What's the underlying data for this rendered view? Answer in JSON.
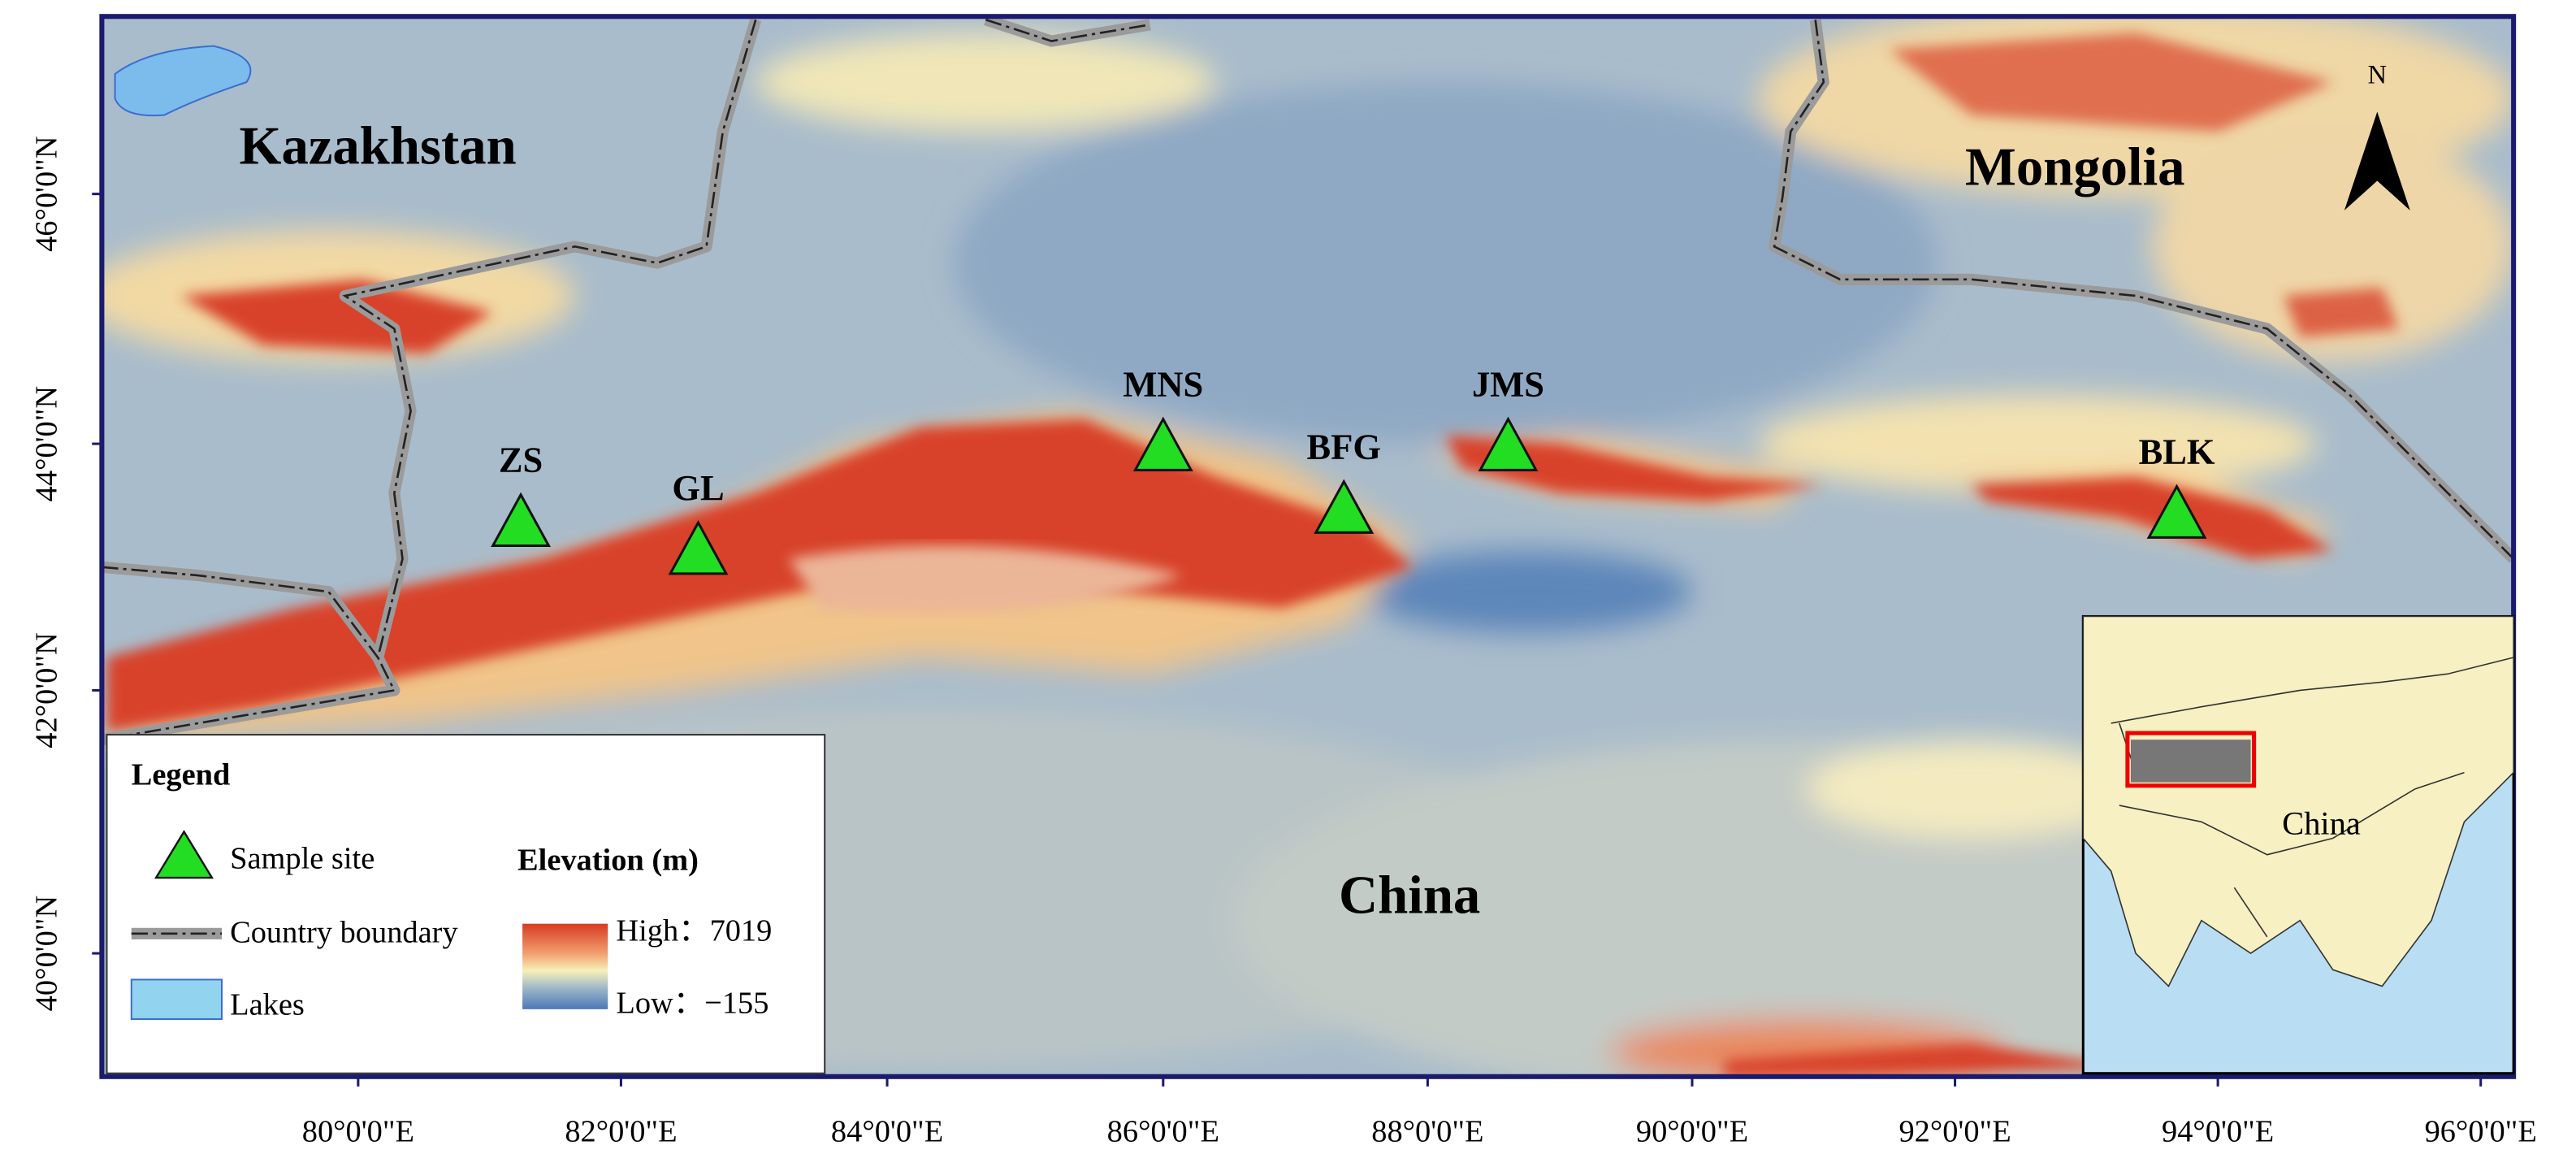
{
  "map": {
    "countries": [
      "Kazakhstan",
      "Mongolia",
      "China"
    ],
    "sites": [
      "ZS",
      "GL",
      "MNS",
      "BFG",
      "JMS",
      "BLK"
    ],
    "longitude_labels": [
      "80°0'0\"E",
      "82°0'0\"E",
      "84°0'0\"E",
      "86°0'0\"E",
      "88°0'0\"E",
      "90°0'0\"E",
      "92°0'0\"E",
      "94°0'0\"E",
      "96°0'0\"E"
    ],
    "latitude_labels": [
      "46°0'0\"N",
      "44°0'0\"N",
      "42°0'0\"N",
      "40°0'0\"N"
    ],
    "north": "N",
    "inset_label": "China",
    "legend": {
      "title": "Legend",
      "items": [
        "Sample site",
        "Country boundary",
        "Lakes"
      ],
      "elevation_title": "Elevation (m)",
      "high": "High：7019",
      "low": "Low：−155"
    }
  }
}
